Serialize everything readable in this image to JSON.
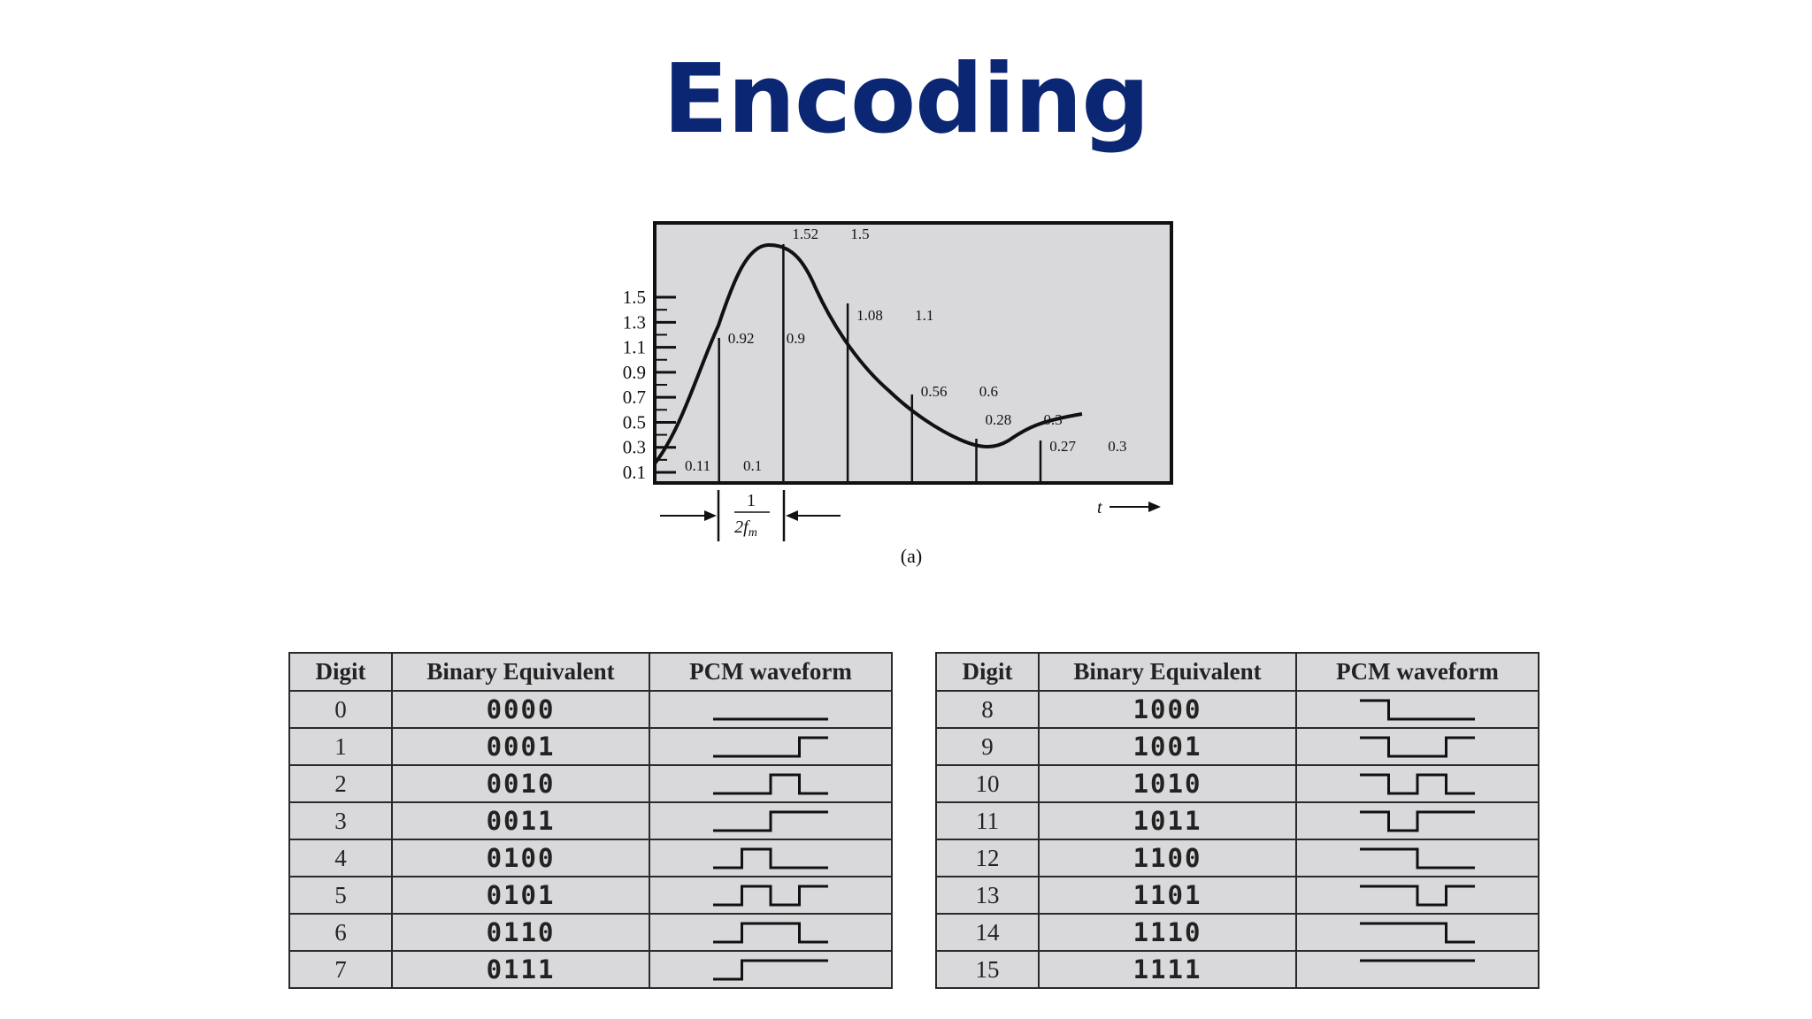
{
  "title": "Encoding",
  "figure": {
    "caption": "(a)",
    "time_label": "t",
    "interval_numerator": "1",
    "interval_denominator": "2f",
    "interval_subscript": "m",
    "y_ticks": [
      "1.5",
      "1.3",
      "1.1",
      "0.9",
      "0.7",
      "0.5",
      "0.3",
      "0.1"
    ],
    "samples": [
      {
        "actual": "0.11",
        "quantized": "0.1"
      },
      {
        "actual": "0.92",
        "quantized": "0.9"
      },
      {
        "actual": "1.52",
        "quantized": "1.5"
      },
      {
        "actual": "1.08",
        "quantized": "1.1"
      },
      {
        "actual": "0.56",
        "quantized": "0.6"
      },
      {
        "actual": "0.28",
        "quantized": "0.3"
      },
      {
        "actual": "0.27",
        "quantized": "0.3"
      }
    ]
  },
  "table_headers": {
    "digit": "Digit",
    "binary": "Binary Equivalent",
    "waveform": "PCM waveform"
  },
  "left_table": [
    {
      "digit": "0",
      "binary": "0000"
    },
    {
      "digit": "1",
      "binary": "0001"
    },
    {
      "digit": "2",
      "binary": "0010"
    },
    {
      "digit": "3",
      "binary": "0011"
    },
    {
      "digit": "4",
      "binary": "0100"
    },
    {
      "digit": "5",
      "binary": "0101"
    },
    {
      "digit": "6",
      "binary": "0110"
    },
    {
      "digit": "7",
      "binary": "0111"
    }
  ],
  "right_table": [
    {
      "digit": "8",
      "binary": "1000"
    },
    {
      "digit": "9",
      "binary": "1001"
    },
    {
      "digit": "10",
      "binary": "1010"
    },
    {
      "digit": "11",
      "binary": "1011"
    },
    {
      "digit": "12",
      "binary": "1100"
    },
    {
      "digit": "13",
      "binary": "1101"
    },
    {
      "digit": "14",
      "binary": "1110"
    },
    {
      "digit": "15",
      "binary": "1111"
    }
  ]
}
